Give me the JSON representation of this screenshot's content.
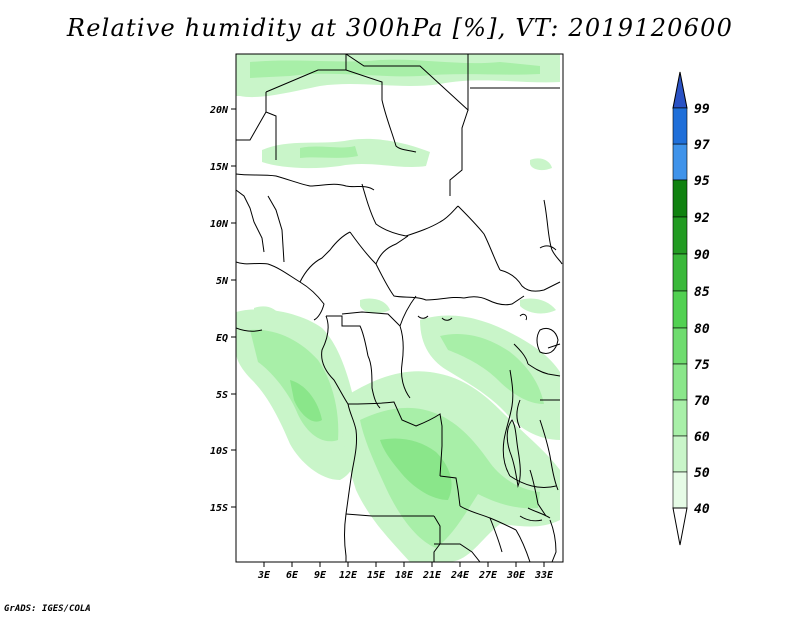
{
  "map": {
    "title": "Relative humidity at 300hPa [%], VT: 2019120600",
    "credit": "GrADS: IGES/COLA",
    "lat_ticks": [
      "20N",
      "15N",
      "10N",
      "5N",
      "EQ",
      "5S",
      "10S",
      "15S"
    ],
    "lon_ticks": [
      "3E",
      "6E",
      "9E",
      "12E",
      "15E",
      "18E",
      "21E",
      "24E",
      "27E",
      "30E",
      "33E"
    ]
  },
  "colorbar": {
    "levels": [
      "40",
      "50",
      "60",
      "70",
      "75",
      "80",
      "85",
      "90",
      "92",
      "95",
      "97",
      "99"
    ],
    "colors": [
      "#ffffff",
      "#e6fbe6",
      "#c9f5c9",
      "#a8efa8",
      "#8ae68a",
      "#6fdc6f",
      "#52d152",
      "#3ab83a",
      "#229b22",
      "#118211",
      "#3f93ea",
      "#1f6fd9",
      "#2a52c4"
    ]
  }
}
